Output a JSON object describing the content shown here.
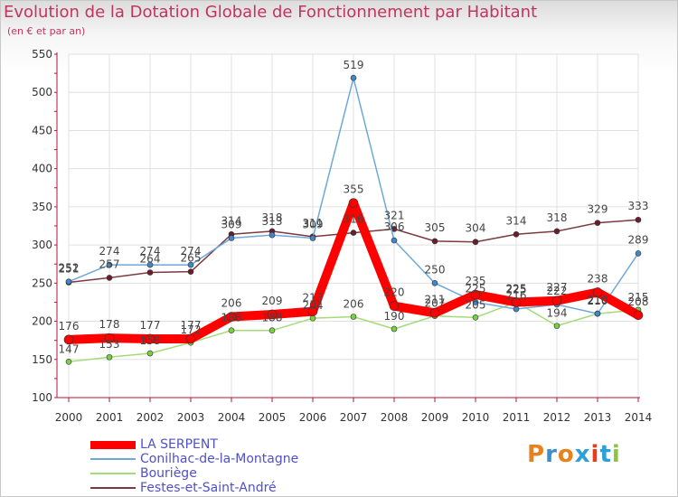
{
  "title": "Evolution de la Dotation Globale de Fonctionnement par Habitant",
  "subtitle": "(en € et par an)",
  "logo_text": "Proxiti",
  "colors": {
    "title": "#c3345d",
    "axis": "#b8123f",
    "grid": "#e0e0e0",
    "legend_text": "#5050c8"
  },
  "chart_data": {
    "type": "line",
    "title": "Evolution de la Dotation Globale de Fonctionnement par Habitant",
    "subtitle": "(en € et par an)",
    "xlabel": "",
    "ylabel": "",
    "categories": [
      "2000",
      "2001",
      "2002",
      "2003",
      "2004",
      "2005",
      "2006",
      "2007",
      "2008",
      "2009",
      "2010",
      "2011",
      "2012",
      "2013",
      "2014"
    ],
    "yticks": [
      100,
      150,
      200,
      250,
      300,
      350,
      400,
      450,
      500,
      550
    ],
    "ylim": [
      100,
      550
    ],
    "grid": true,
    "legend_position": "bottom-left",
    "series": [
      {
        "name": "LA SERPENT",
        "color": "#ff0000",
        "marker": "#ff0000",
        "values": [
          176,
          178,
          177,
          177,
          206,
          209,
          213,
          355,
          220,
          211,
          235,
          225,
          227,
          238,
          208
        ]
      },
      {
        "name": "Conilhac-de-la-Montagne",
        "color": "#6fa8d8",
        "marker": "#3f87c8",
        "values": [
          252,
          274,
          274,
          274,
          309,
          313,
          309,
          519,
          306,
          250,
          225,
          216,
          222,
          210,
          289
        ]
      },
      {
        "name": "Bouriège",
        "color": "#a3dc77",
        "marker": "#78d040",
        "values": [
          147,
          153,
          158,
          172,
          188,
          188,
          204,
          206,
          190,
          207,
          205,
          225,
          194,
          210,
          215
        ]
      },
      {
        "name": "Festes-et-Saint-André",
        "color": "#7a3a3f",
        "marker": "#6a1d2c",
        "values": [
          251,
          257,
          264,
          265,
          314,
          318,
          311,
          316,
          321,
          305,
          304,
          314,
          318,
          329,
          333
        ]
      }
    ],
    "value_labels": [
      [
        {
          "i": 0,
          "t": "176"
        },
        {
          "i": 1,
          "t": "178"
        },
        {
          "i": 2,
          "t": "177"
        },
        {
          "i": 3,
          "t": "177"
        },
        {
          "i": 4,
          "t": "206"
        },
        {
          "i": 5,
          "t": "209"
        },
        {
          "i": 6,
          "t": "213"
        },
        {
          "i": 7,
          "t": "355"
        },
        {
          "i": 8,
          "t": "220"
        },
        {
          "i": 9,
          "t": "211"
        },
        {
          "i": 10,
          "t": "235"
        },
        {
          "i": 11,
          "t": "225"
        },
        {
          "i": 12,
          "t": "227"
        },
        {
          "i": 13,
          "t": "238"
        },
        {
          "i": 14,
          "t": "208"
        }
      ],
      [
        {
          "i": 0,
          "t": "252"
        },
        {
          "i": 1,
          "t": "274"
        },
        {
          "i": 2,
          "t": "274"
        },
        {
          "i": 3,
          "t": "274"
        },
        {
          "i": 4,
          "t": "309"
        },
        {
          "i": 5,
          "t": "313"
        },
        {
          "i": 6,
          "t": "309"
        },
        {
          "i": 7,
          "t": "519"
        },
        {
          "i": 8,
          "t": "306"
        },
        {
          "i": 9,
          "t": "250"
        },
        {
          "i": 10,
          "t": "225"
        },
        {
          "i": 11,
          "t": "216"
        },
        {
          "i": 12,
          "t": "222"
        },
        {
          "i": 13,
          "t": "210"
        },
        {
          "i": 14,
          "t": "289"
        }
      ],
      [
        {
          "i": 0,
          "t": "147"
        },
        {
          "i": 1,
          "t": "153"
        },
        {
          "i": 2,
          "t": "158"
        },
        {
          "i": 3,
          "t": "172"
        },
        {
          "i": 4,
          "t": "188"
        },
        {
          "i": 5,
          "t": "188"
        },
        {
          "i": 6,
          "t": "204"
        },
        {
          "i": 7,
          "t": "206"
        },
        {
          "i": 8,
          "t": "190"
        },
        {
          "i": 9,
          "t": "207"
        },
        {
          "i": 10,
          "t": "205"
        },
        {
          "i": 11,
          "t": "225"
        },
        {
          "i": 12,
          "t": "194"
        },
        {
          "i": 13,
          "t": "210"
        },
        {
          "i": 14,
          "t": "215"
        }
      ],
      [
        {
          "i": 0,
          "t": "251"
        },
        {
          "i": 1,
          "t": "257"
        },
        {
          "i": 2,
          "t": "264"
        },
        {
          "i": 3,
          "t": "265"
        },
        {
          "i": 4,
          "t": "314"
        },
        {
          "i": 5,
          "t": "318"
        },
        {
          "i": 6,
          "t": "311"
        },
        {
          "i": 7,
          "t": "316"
        },
        {
          "i": 8,
          "t": "321"
        },
        {
          "i": 9,
          "t": "305"
        },
        {
          "i": 10,
          "t": "304"
        },
        {
          "i": 11,
          "t": "314"
        },
        {
          "i": 12,
          "t": "318"
        },
        {
          "i": 13,
          "t": "329"
        },
        {
          "i": 14,
          "t": "333"
        }
      ]
    ]
  }
}
